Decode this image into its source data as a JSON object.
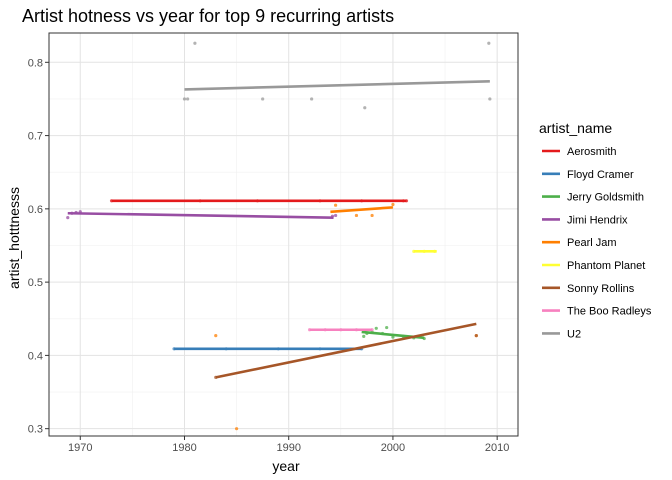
{
  "chart_data": {
    "type": "scatter",
    "title": "Artist hotness vs year for top 9 recurring artists",
    "xlabel": "year",
    "ylabel": "artist_hotttnesss",
    "xlim": [
      1967,
      2012
    ],
    "ylim": [
      0.29,
      0.84
    ],
    "xticks": [
      "1970",
      "1980",
      "1990",
      "2000",
      "2010"
    ],
    "yticks": [
      "0.3",
      "0.4",
      "0.5",
      "0.6",
      "0.7",
      "0.8"
    ],
    "grid": true,
    "legend_title": "artist_name",
    "legend_position": "right",
    "series": [
      {
        "name": "Aerosmith",
        "color": "#e41a1c",
        "points": [
          [
            1973,
            0.611
          ],
          [
            1981.5,
            0.611
          ],
          [
            1987,
            0.611
          ],
          [
            1993,
            0.611
          ],
          [
            1997,
            0.611
          ],
          [
            2001,
            0.611
          ],
          [
            2001.3,
            0.611
          ]
        ],
        "fit": [
          [
            1973,
            0.611
          ],
          [
            2001.3,
            0.611
          ]
        ]
      },
      {
        "name": "Floyd Cramer",
        "color": "#377eb8",
        "points": [
          [
            1979,
            0.409
          ],
          [
            1984,
            0.409
          ],
          [
            1989,
            0.409
          ],
          [
            1993,
            0.409
          ],
          [
            1997,
            0.409
          ]
        ],
        "fit": [
          [
            1979,
            0.409
          ],
          [
            1997,
            0.409
          ]
        ]
      },
      {
        "name": "Jerry Goldsmith",
        "color": "#4daf4a",
        "points": [
          [
            1997.2,
            0.426
          ],
          [
            1997.5,
            0.43
          ],
          [
            1998,
            0.432
          ],
          [
            1998.4,
            0.437
          ],
          [
            1999,
            0.43
          ],
          [
            1999.4,
            0.438
          ],
          [
            2000,
            0.425
          ],
          [
            2001,
            0.426
          ],
          [
            2002,
            0.424
          ],
          [
            2003,
            0.423
          ]
        ],
        "fit": [
          [
            1997,
            0.432
          ],
          [
            2003,
            0.424
          ]
        ]
      },
      {
        "name": "Jimi Hendrix",
        "color": "#984ea3",
        "points": [
          [
            1968.8,
            0.588
          ],
          [
            1969.2,
            0.594
          ],
          [
            1969.6,
            0.595
          ],
          [
            1970,
            0.596
          ],
          [
            1994.2,
            0.59
          ],
          [
            1994.5,
            0.591
          ]
        ],
        "fit": [
          [
            1968.8,
            0.594
          ],
          [
            1994.3,
            0.588
          ]
        ]
      },
      {
        "name": "Pearl Jam",
        "color": "#ff7f00",
        "points": [
          [
            1983,
            0.427
          ],
          [
            1985,
            0.3
          ],
          [
            1994.5,
            0.605
          ],
          [
            1996.5,
            0.591
          ],
          [
            1998,
            0.591
          ],
          [
            2000,
            0.606
          ],
          [
            2008,
            0.427
          ]
        ],
        "fit": [
          [
            1994,
            0.596
          ],
          [
            2000,
            0.602
          ]
        ]
      },
      {
        "name": "Phantom Planet",
        "color": "#ffff33",
        "points": [
          [
            2002,
            0.542
          ],
          [
            2003,
            0.542
          ],
          [
            2004,
            0.542
          ]
        ],
        "fit": [
          [
            2002,
            0.542
          ],
          [
            2004.2,
            0.542
          ]
        ]
      },
      {
        "name": "Sonny Rollins",
        "color": "#a65628",
        "points": [
          [
            1983,
            0.37
          ],
          [
            2008,
            0.427
          ]
        ],
        "fit": [
          [
            1983,
            0.37
          ],
          [
            2008,
            0.443
          ]
        ]
      },
      {
        "name": "The Boo Radleys",
        "color": "#f781bf",
        "points": [
          [
            1992,
            0.435
          ],
          [
            1993.5,
            0.435
          ],
          [
            1995,
            0.435
          ],
          [
            1996.5,
            0.435
          ],
          [
            1998,
            0.435
          ]
        ],
        "fit": [
          [
            1992,
            0.435
          ],
          [
            1998,
            0.435
          ]
        ]
      },
      {
        "name": "U2",
        "color": "#999999",
        "points": [
          [
            1980,
            0.75
          ],
          [
            1980.3,
            0.75
          ],
          [
            1981,
            0.826
          ],
          [
            1987.5,
            0.75
          ],
          [
            1992.2,
            0.75
          ],
          [
            1997.3,
            0.738
          ],
          [
            2009.2,
            0.826
          ],
          [
            2009.3,
            0.75
          ]
        ],
        "fit": [
          [
            1980,
            0.763
          ],
          [
            2009.3,
            0.774
          ]
        ]
      }
    ]
  }
}
